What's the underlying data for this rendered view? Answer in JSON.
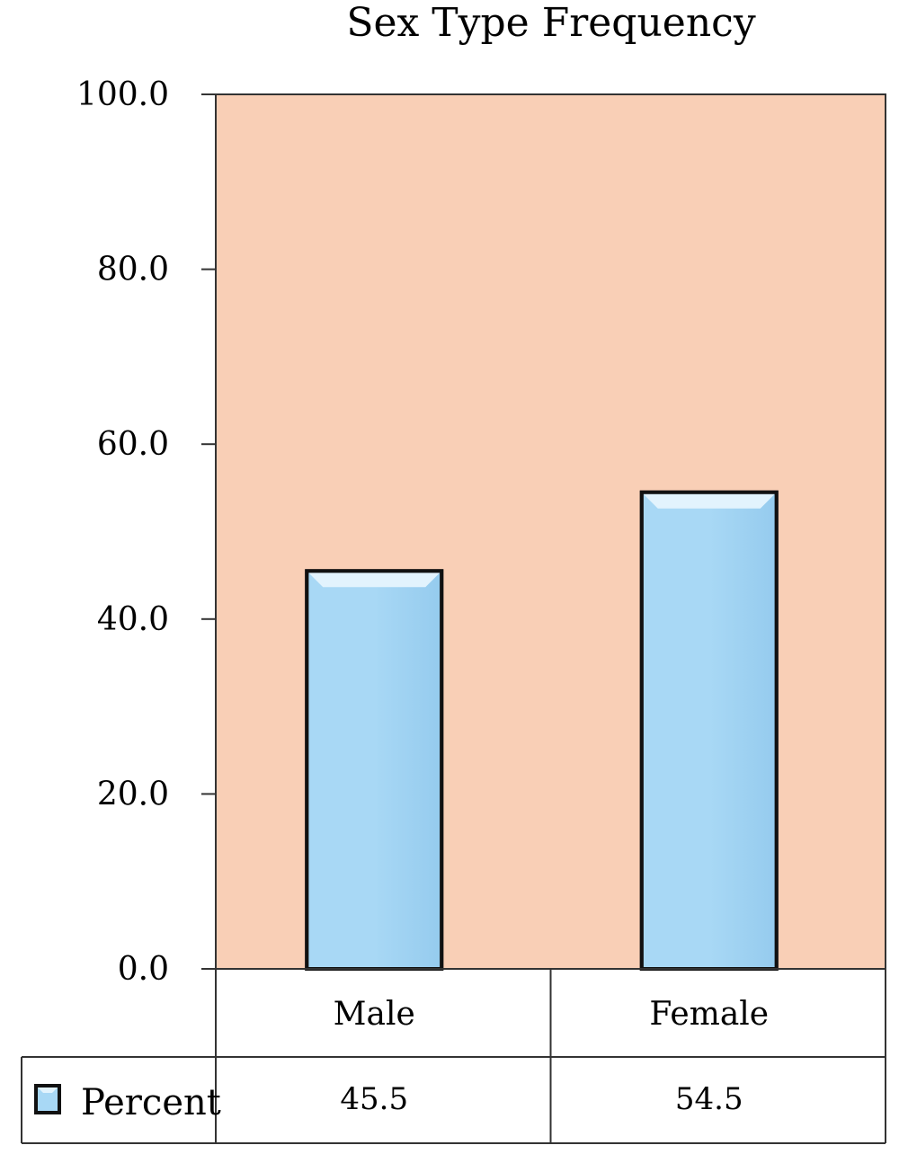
{
  "chart_data": {
    "type": "bar",
    "title": "Sex Type Frequency",
    "categories": [
      "Male",
      "Female"
    ],
    "series": [
      {
        "name": "Percent",
        "values": [
          45.5,
          54.5
        ],
        "value_labels": [
          "45.5",
          "54.5"
        ]
      }
    ],
    "ylim": [
      0,
      100
    ],
    "yticks": [
      0,
      20,
      40,
      60,
      80,
      100
    ],
    "ytick_labels": [
      "0.0",
      "20.0",
      "40.0",
      "60.0",
      "80.0",
      "100.0"
    ],
    "xlabel": "",
    "ylabel": "",
    "grid": false,
    "legend": "data-table-bottom-left",
    "colors": {
      "plot_background": "#f9cfb6",
      "bar_fill": "#a8d8f5",
      "bar_highlight": "#e2f3fd",
      "bar_edge": "#111111"
    }
  }
}
